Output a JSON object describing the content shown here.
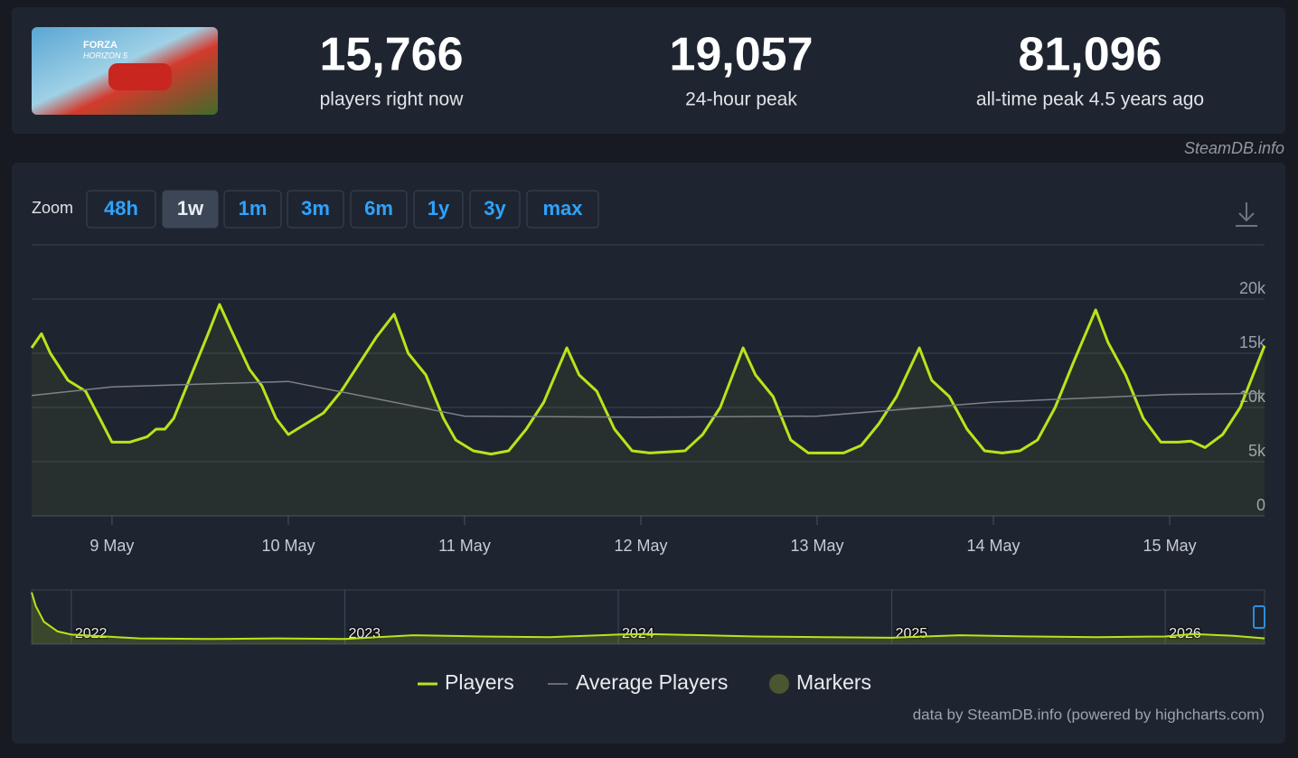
{
  "header": {
    "game_logo": [
      "FORZA",
      "HORIZON 5"
    ],
    "stats": [
      {
        "value": "15,766",
        "label": "players right now"
      },
      {
        "value": "19,057",
        "label": "24-hour peak"
      },
      {
        "value": "81,096",
        "label": "all-time peak 4.5 years ago"
      }
    ]
  },
  "watermark": "SteamDB.info",
  "zoom": {
    "label": "Zoom",
    "buttons": [
      "48h",
      "1w",
      "1m",
      "3m",
      "6m",
      "1y",
      "3y",
      "max"
    ],
    "active": "1w"
  },
  "chart_data": {
    "type": "line",
    "x": [
      8.544,
      8.6,
      8.65,
      8.75,
      8.85,
      8.93,
      9.0,
      9.1,
      9.2,
      9.25,
      9.3,
      9.35,
      9.45,
      9.55,
      9.61,
      9.68,
      9.78,
      9.85,
      9.93,
      10.0,
      10.1,
      10.2,
      10.3,
      10.4,
      10.5,
      10.6,
      10.68,
      10.78,
      10.88,
      10.95,
      11.05,
      11.15,
      11.25,
      11.35,
      11.45,
      11.58,
      11.65,
      11.75,
      11.85,
      11.95,
      12.05,
      12.15,
      12.25,
      12.35,
      12.45,
      12.58,
      12.65,
      12.75,
      12.85,
      12.95,
      13.05,
      13.15,
      13.25,
      13.35,
      13.45,
      13.58,
      13.65,
      13.75,
      13.85,
      13.95,
      14.05,
      14.15,
      14.25,
      14.35,
      14.45,
      14.58,
      14.65,
      14.75,
      14.85,
      14.95,
      15.05,
      15.12,
      15.2,
      15.3,
      15.4,
      15.538
    ],
    "series": [
      {
        "name": "Players",
        "color": "#b9e41a",
        "values": [
          15500,
          16800,
          15000,
          12500,
          11500,
          9000,
          6800,
          6800,
          7300,
          8000,
          8000,
          9000,
          13000,
          17000,
          19500,
          17000,
          13500,
          12000,
          9000,
          7500,
          8500,
          9500,
          11500,
          14000,
          16500,
          18600,
          15000,
          13000,
          9000,
          7000,
          6000,
          5700,
          6000,
          8000,
          10500,
          15500,
          13000,
          11500,
          8000,
          6000,
          5800,
          5900,
          6000,
          7500,
          10000,
          15500,
          13000,
          11000,
          7000,
          5800,
          5800,
          5800,
          6500,
          8500,
          11000,
          15500,
          12500,
          11000,
          8000,
          6000,
          5800,
          6000,
          7000,
          10000,
          14000,
          19000,
          16000,
          13000,
          9000,
          6800,
          6800,
          6900,
          6300,
          7500,
          10000,
          15700
        ]
      },
      {
        "name": "Average Players",
        "color": "#7d8289",
        "x": [
          8.544,
          9,
          10,
          11,
          12,
          13,
          14,
          15,
          15.538
        ],
        "values": [
          11100,
          11900,
          12400,
          9200,
          9100,
          9200,
          10500,
          11200,
          11300
        ]
      },
      {
        "name": "Markers",
        "color": "#4a5630"
      }
    ],
    "xlim": [
      8.544,
      15.538
    ],
    "xticks": [
      {
        "value": 9,
        "label": "9 May"
      },
      {
        "value": 10,
        "label": "10 May"
      },
      {
        "value": 11,
        "label": "11 May"
      },
      {
        "value": 12,
        "label": "12 May"
      },
      {
        "value": 13,
        "label": "13 May"
      },
      {
        "value": 14,
        "label": "14 May"
      },
      {
        "value": 15,
        "label": "15 May"
      }
    ],
    "ylim": [
      0,
      25000
    ],
    "yticks": [
      0,
      {
        "value": 5000,
        "label": "5k"
      },
      {
        "value": 10000,
        "label": "10k"
      },
      {
        "value": 15000,
        "label": "15k"
      },
      {
        "value": 20000,
        "label": "20k"
      }
    ],
    "grid": true,
    "legend": "bottom"
  },
  "navigator": {
    "type": "area",
    "x": [
      2021.855,
      2021.87,
      2021.9,
      2021.95,
      2022.0,
      2022.25,
      2022.5,
      2022.75,
      2023.0,
      2023.25,
      2023.5,
      2023.75,
      2024.0,
      2024.1,
      2024.5,
      2024.75,
      2025.0,
      2025.25,
      2025.5,
      2025.75,
      2026.0,
      2026.1,
      2026.25,
      2026.363
    ],
    "values": [
      81000,
      60000,
      35000,
      20000,
      15000,
      9000,
      8000,
      9000,
      8000,
      14000,
      12000,
      11000,
      15000,
      16000,
      12000,
      11000,
      10000,
      14000,
      12000,
      11000,
      12000,
      16000,
      13000,
      9000
    ],
    "xlim": [
      2021.855,
      2026.363
    ],
    "ylim": [
      0,
      82000
    ],
    "xticks": [
      2022,
      2023,
      2024,
      2025,
      2026
    ],
    "color": "#b9e41a"
  },
  "credits": "data by SteamDB.info (powered by highcharts.com)"
}
